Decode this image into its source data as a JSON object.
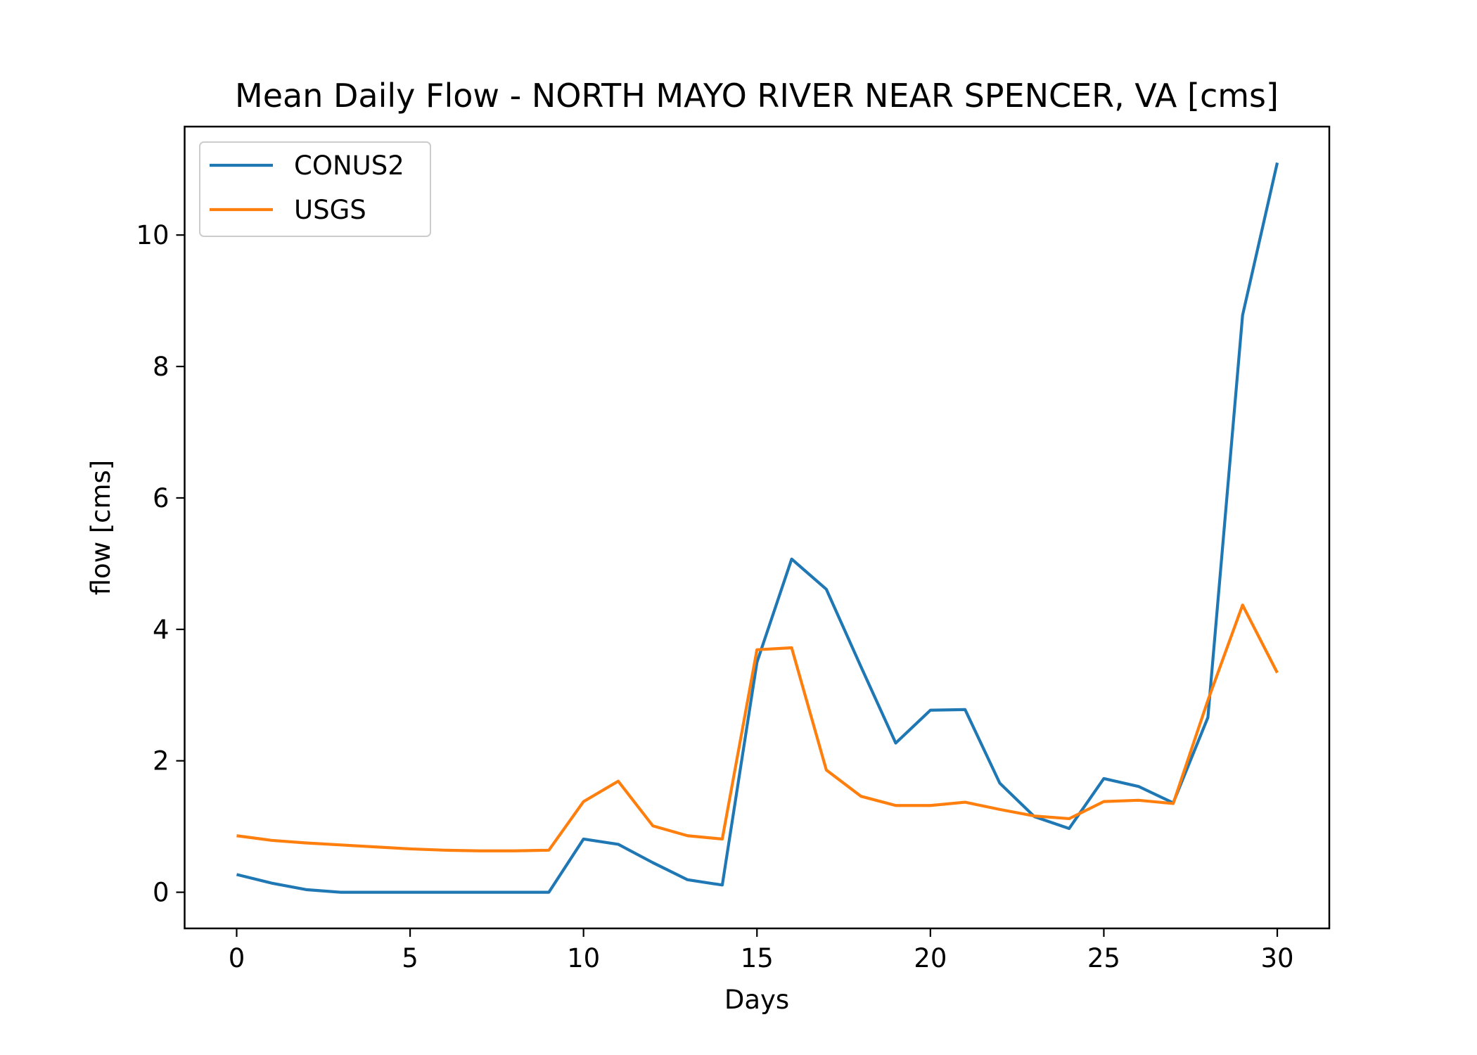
{
  "chart_data": {
    "type": "line",
    "title": "Mean Daily Flow - NORTH MAYO RIVER NEAR SPENCER, VA [cms]",
    "xlabel": "Days",
    "ylabel": "flow [cms]",
    "xlim": [
      -1.5,
      31.5
    ],
    "ylim": [
      -0.55,
      11.65
    ],
    "xticks": [
      0,
      5,
      10,
      15,
      20,
      25,
      30
    ],
    "yticks": [
      0,
      2,
      4,
      6,
      8,
      10
    ],
    "grid": false,
    "legend_position": "upper-left",
    "x": [
      0,
      1,
      2,
      3,
      4,
      5,
      6,
      7,
      8,
      9,
      10,
      11,
      12,
      13,
      14,
      15,
      16,
      17,
      18,
      19,
      20,
      21,
      22,
      23,
      24,
      25,
      26,
      27,
      28,
      29,
      30
    ],
    "series": [
      {
        "name": "CONUS2",
        "color": "#1f77b4",
        "values": [
          0.27,
          0.14,
          0.04,
          0.0,
          0.0,
          0.0,
          0.0,
          0.0,
          0.0,
          0.0,
          0.81,
          0.73,
          0.45,
          0.19,
          0.11,
          3.5,
          5.07,
          4.61,
          3.43,
          2.27,
          2.77,
          2.78,
          1.66,
          1.15,
          0.97,
          1.73,
          1.61,
          1.36,
          2.66,
          8.78,
          11.1
        ]
      },
      {
        "name": "USGS",
        "color": "#ff7f0e",
        "values": [
          0.86,
          0.79,
          0.75,
          0.72,
          0.69,
          0.66,
          0.64,
          0.63,
          0.63,
          0.64,
          1.38,
          1.69,
          1.01,
          0.86,
          0.81,
          3.69,
          3.72,
          1.86,
          1.46,
          1.32,
          1.32,
          1.37,
          1.26,
          1.16,
          1.12,
          1.38,
          1.4,
          1.35,
          2.92,
          4.37,
          3.34
        ]
      }
    ]
  }
}
